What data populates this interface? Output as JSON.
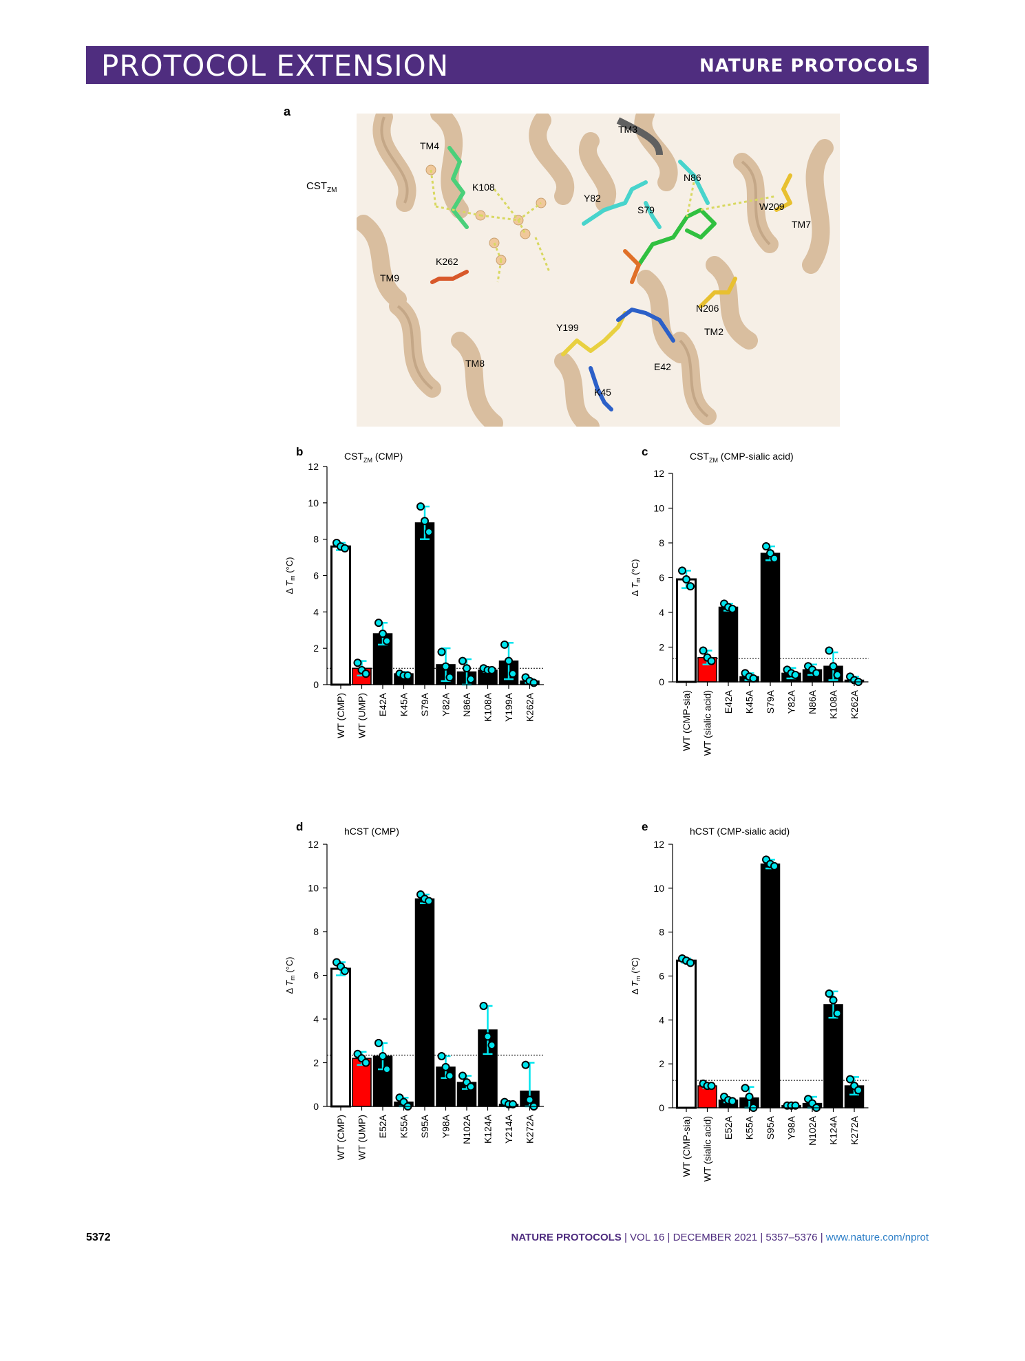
{
  "header": {
    "left": "PROTOCOL EXTENSION",
    "right": "NATURE PROTOCOLS"
  },
  "footer": {
    "page": "5372",
    "journal": "NATURE PROTOCOLS",
    "vol": "VOL 16",
    "date": "DECEMBER 2021",
    "pages": "5357–5376",
    "url": "www.nature.com/nprot",
    "sep": "|"
  },
  "panel_a": {
    "letter": "a",
    "cst_label": "CST",
    "cst_sub": "ZM",
    "labels": [
      "TM3",
      "TM4",
      "K108",
      "N86",
      "Y82",
      "S79",
      "W209",
      "TM7",
      "K262",
      "TM9",
      "N206",
      "TM2",
      "Y199",
      "TM8",
      "E42",
      "K45"
    ]
  },
  "colors": {
    "header": "#4f2d7f",
    "wt_bar": "#ffffff",
    "control_bar": "#ff0000",
    "mutant_bar": "#000000",
    "points": "#00e5ee",
    "helix": "#d9bfa0"
  },
  "ylabel": {
    "delta": "Δ",
    "T": "T",
    "m": "m",
    "unit": " (°C)"
  },
  "chart_data": [
    {
      "letter": "b",
      "type": "bar",
      "title": "CST",
      "title_sub": "ZM",
      "title_rest": " (CMP)",
      "ylim": [
        0,
        12
      ],
      "yticks": [
        0,
        2,
        4,
        6,
        8,
        10,
        12
      ],
      "categories": [
        "WT (CMP)",
        "WT (UMP)",
        "E42A",
        "K45A",
        "S79A",
        "Y82A",
        "N86A",
        "K108A",
        "Y199A",
        "K262A"
      ],
      "values": [
        7.6,
        0.9,
        2.8,
        0.6,
        8.9,
        1.1,
        0.7,
        0.8,
        1.3,
        0.2
      ],
      "errors": [
        0.2,
        0.4,
        0.6,
        0.1,
        0.9,
        0.9,
        0.7,
        0.1,
        1.0,
        0.1
      ],
      "points": [
        [
          7.8,
          7.6,
          7.5
        ],
        [
          1.2,
          0.8,
          0.6
        ],
        [
          3.4,
          2.8,
          2.4
        ],
        [
          0.6,
          0.5,
          0.5
        ],
        [
          9.8,
          9.0,
          8.4
        ],
        [
          1.8,
          1.0,
          0.4
        ],
        [
          1.3,
          0.9,
          0.3
        ],
        [
          0.9,
          0.8,
          0.8
        ],
        [
          2.2,
          1.3,
          0.6
        ],
        [
          0.4,
          0.2,
          0.1
        ]
      ],
      "bar_kinds": [
        "wt",
        "control",
        "mutant",
        "mutant",
        "mutant",
        "mutant",
        "mutant",
        "mutant",
        "mutant",
        "mutant"
      ],
      "threshold": 0.9
    },
    {
      "letter": "c",
      "type": "bar",
      "title": "CST",
      "title_sub": "ZM",
      "title_rest": " (CMP-sialic acid)",
      "ylim": [
        0,
        12
      ],
      "yticks": [
        0,
        2,
        4,
        6,
        8,
        10,
        12
      ],
      "categories": [
        "WT (CMP-sia)",
        "WT (sialic acid)",
        "E42A",
        "K45A",
        "S79A",
        "Y82A",
        "N86A",
        "K108A",
        "K262A"
      ],
      "values": [
        5.9,
        1.4,
        4.3,
        0.3,
        7.4,
        0.5,
        0.7,
        0.9,
        0.1
      ],
      "errors": [
        0.5,
        0.4,
        0.2,
        0.2,
        0.4,
        0.3,
        0.3,
        0.8,
        0.2
      ],
      "points": [
        [
          6.4,
          5.9,
          5.5
        ],
        [
          1.8,
          1.4,
          1.2
        ],
        [
          4.5,
          4.3,
          4.2
        ],
        [
          0.5,
          0.3,
          0.2
        ],
        [
          7.8,
          7.4,
          7.1
        ],
        [
          0.7,
          0.5,
          0.4
        ],
        [
          0.9,
          0.7,
          0.5
        ],
        [
          1.8,
          0.9,
          0.4
        ],
        [
          0.3,
          0.1,
          0.0
        ]
      ],
      "bar_kinds": [
        "wt",
        "control",
        "mutant",
        "mutant",
        "mutant",
        "mutant",
        "mutant",
        "mutant",
        "mutant"
      ],
      "threshold": 1.35
    },
    {
      "letter": "d",
      "type": "bar",
      "title": "hCST (CMP)",
      "title_sub": "",
      "title_rest": "",
      "ylim": [
        0,
        12
      ],
      "yticks": [
        0,
        2,
        4,
        6,
        8,
        10,
        12
      ],
      "categories": [
        "WT (CMP)",
        "WT (UMP)",
        "E52A",
        "K55A",
        "S95A",
        "Y98A",
        "N102A",
        "K124A",
        "Y214A",
        "K272A"
      ],
      "values": [
        6.3,
        2.2,
        2.3,
        0.2,
        9.5,
        1.8,
        1.1,
        3.5,
        0.1,
        0.7
      ],
      "errors": [
        0.3,
        0.3,
        0.6,
        0.2,
        0.2,
        0.5,
        0.3,
        1.1,
        0.1,
        1.3
      ],
      "points": [
        [
          6.6,
          6.4,
          6.2
        ],
        [
          2.4,
          2.2,
          2.0
        ],
        [
          2.9,
          2.3,
          1.7
        ],
        [
          0.4,
          0.2,
          0.0
        ],
        [
          9.7,
          9.5,
          9.4
        ],
        [
          2.3,
          1.8,
          1.4
        ],
        [
          1.4,
          1.1,
          0.9
        ],
        [
          4.6,
          3.2,
          2.8
        ],
        [
          0.2,
          0.1,
          0.1
        ],
        [
          1.9,
          0.3,
          0.0
        ]
      ],
      "bar_kinds": [
        "wt",
        "control",
        "mutant",
        "mutant",
        "mutant",
        "mutant",
        "mutant",
        "mutant",
        "mutant",
        "mutant"
      ],
      "threshold": 2.35
    },
    {
      "letter": "e",
      "type": "bar",
      "title": "hCST (CMP-sialic acid)",
      "title_sub": "",
      "title_rest": "",
      "ylim": [
        0,
        12
      ],
      "yticks": [
        0,
        2,
        4,
        6,
        8,
        10,
        12
      ],
      "categories": [
        "WT (CMP-sia)",
        "WT (sialic acid)",
        "E52A",
        "K55A",
        "S95A",
        "Y98A",
        "N102A",
        "K124A",
        "K272A"
      ],
      "values": [
        6.7,
        1.0,
        0.35,
        0.45,
        11.1,
        0.1,
        0.2,
        4.7,
        1.0
      ],
      "errors": [
        0.1,
        0.1,
        0.1,
        0.5,
        0.2,
        0.05,
        0.3,
        0.6,
        0.4
      ],
      "points": [
        [
          6.8,
          6.7,
          6.6
        ],
        [
          1.1,
          1.0,
          1.0
        ],
        [
          0.5,
          0.35,
          0.3
        ],
        [
          0.9,
          0.5,
          0.0
        ],
        [
          11.3,
          11.1,
          11.0
        ],
        [
          0.1,
          0.1,
          0.1
        ],
        [
          0.4,
          0.2,
          0.0
        ],
        [
          5.2,
          4.9,
          4.3
        ],
        [
          1.3,
          1.0,
          0.8
        ]
      ],
      "bar_kinds": [
        "wt",
        "control",
        "mutant",
        "mutant",
        "mutant",
        "mutant",
        "mutant",
        "mutant",
        "mutant"
      ],
      "threshold": 1.25
    }
  ]
}
